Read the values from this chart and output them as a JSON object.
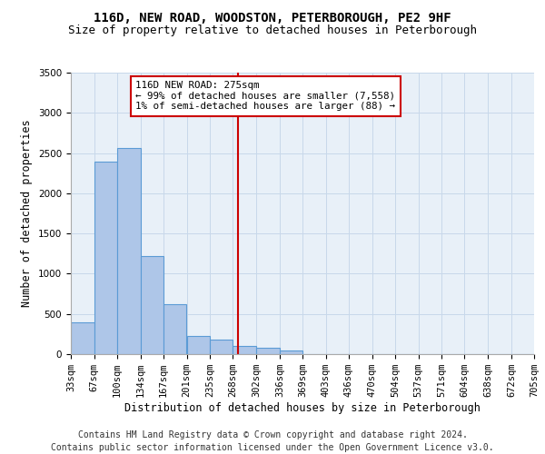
{
  "title_line1": "116D, NEW ROAD, WOODSTON, PETERBOROUGH, PE2 9HF",
  "title_line2": "Size of property relative to detached houses in Peterborough",
  "xlabel": "Distribution of detached houses by size in Peterborough",
  "ylabel": "Number of detached properties",
  "footer_line1": "Contains HM Land Registry data © Crown copyright and database right 2024.",
  "footer_line2": "Contains public sector information licensed under the Open Government Licence v3.0.",
  "annotation_line1": "116D NEW ROAD: 275sqm",
  "annotation_line2": "← 99% of detached houses are smaller (7,558)",
  "annotation_line3": "1% of semi-detached houses are larger (88) →",
  "bar_edges": [
    33,
    67,
    100,
    134,
    167,
    201,
    235,
    268,
    302,
    336,
    369,
    403,
    436,
    470,
    504,
    537,
    571,
    604,
    638,
    672,
    705
  ],
  "bar_heights": [
    390,
    2390,
    2560,
    1220,
    620,
    230,
    180,
    100,
    80,
    50,
    0,
    0,
    0,
    0,
    0,
    0,
    0,
    0,
    0,
    0
  ],
  "bar_color": "#aec6e8",
  "bar_edge_color": "#5b9bd5",
  "bar_linewidth": 0.8,
  "vline_x": 275,
  "vline_color": "#cc0000",
  "vline_linewidth": 1.5,
  "annotation_box_color": "#cc0000",
  "ylim": [
    0,
    3500
  ],
  "yticks": [
    0,
    500,
    1000,
    1500,
    2000,
    2500,
    3000,
    3500
  ],
  "grid_color": "#c8d8ea",
  "bg_color": "#e8f0f8",
  "title_fontsize": 10,
  "subtitle_fontsize": 9,
  "axis_label_fontsize": 8.5,
  "tick_fontsize": 7.5,
  "footer_fontsize": 7
}
